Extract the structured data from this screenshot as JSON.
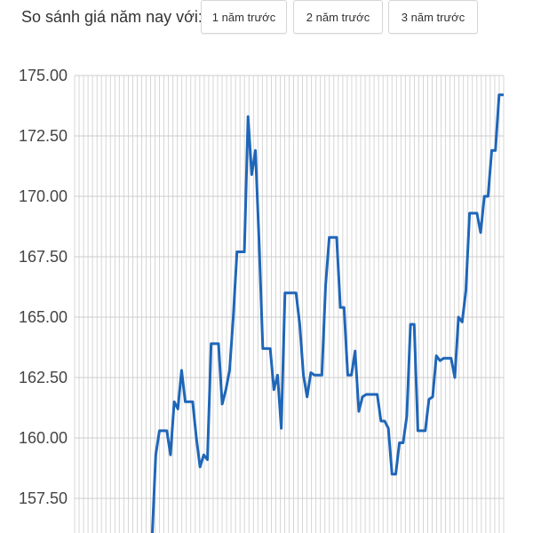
{
  "header": {
    "label": "So sánh giá năm nay với:",
    "buttons": [
      {
        "label": "1 năm trước"
      },
      {
        "label": "2 năm trước"
      },
      {
        "label": "3 năm trước"
      }
    ]
  },
  "chart_data": {
    "type": "line",
    "title": "",
    "xlabel": "",
    "ylabel": "",
    "ylim": [
      155.8,
      176.0
    ],
    "y_ticks": [
      "175.00",
      "172.50",
      "170.00",
      "167.50",
      "165.00",
      "162.50",
      "160.00",
      "157.50"
    ],
    "y_tick_values": [
      175.0,
      172.5,
      170.0,
      167.5,
      165.0,
      162.5,
      160.0,
      157.5
    ],
    "grid": true,
    "line_color": "#1f66b8",
    "grid_color": "#cccccc",
    "series": [
      {
        "values": [
          155.5,
          155.8,
          159.3,
          160.3,
          160.3,
          160.3,
          159.3,
          161.5,
          161.2,
          162.8,
          161.5,
          161.5,
          161.5,
          160.0,
          158.8,
          159.3,
          159.1,
          163.9,
          163.9,
          163.9,
          161.4,
          162.0,
          162.8,
          165.0,
          167.7,
          167.7,
          167.7,
          173.3,
          170.9,
          171.9,
          168.1,
          163.7,
          163.7,
          163.7,
          162.0,
          162.6,
          160.4,
          166.0,
          166.0,
          166.0,
          166.0,
          164.7,
          162.6,
          161.7,
          162.7,
          162.6,
          162.6,
          162.6,
          166.3,
          168.3,
          168.3,
          168.3,
          165.4,
          165.4,
          162.6,
          162.6,
          163.6,
          161.1,
          161.7,
          161.8,
          161.8,
          161.8,
          161.8,
          160.7,
          160.7,
          160.4,
          158.5,
          158.5,
          159.8,
          159.8,
          160.9,
          164.7,
          164.7,
          160.3,
          160.3,
          160.3,
          161.6,
          161.7,
          163.4,
          163.2,
          163.3,
          163.3,
          163.3,
          162.5,
          165.0,
          164.8,
          166.1,
          169.3,
          169.3,
          169.3,
          168.5,
          170.0,
          170.0,
          171.9,
          171.9,
          174.2,
          174.2
        ]
      }
    ]
  }
}
